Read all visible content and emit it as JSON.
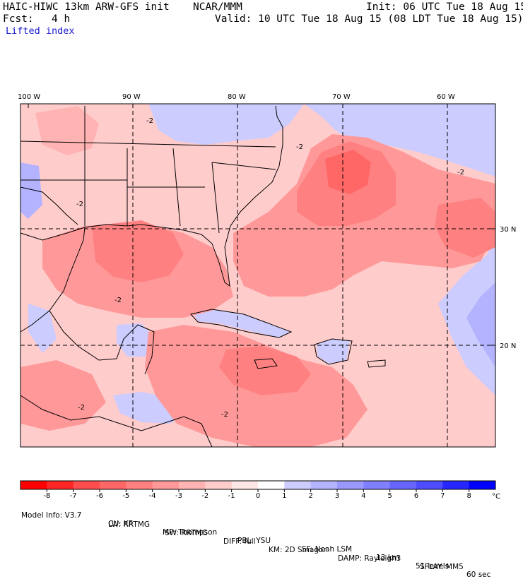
{
  "header": {
    "model": "HAIC-HIWC 13km ARW-GFS init",
    "org": "NCAR/MMM",
    "init": "Init: 06 UTC Tue 18 Aug 15",
    "fcst_label": "Fcst:",
    "fcst_value": "4 h",
    "valid": "Valid: 10 UTC Tue 18 Aug 15 (08 LDT Tue 18 Aug 15)",
    "field": "Lifted index"
  },
  "map": {
    "lon_labels": [
      "100 W",
      "90 W",
      "80 W",
      "70 W",
      "60 W"
    ],
    "lat_labels": [
      "30 N",
      "20 N"
    ],
    "contour_label": "-2"
  },
  "colorbar": {
    "unit": "°C",
    "ticks": [
      "-8",
      "-7",
      "-6",
      "-5",
      "-4",
      "-3",
      "-2",
      "-1",
      "0",
      "1",
      "2",
      "3",
      "4",
      "5",
      "6",
      "7",
      "8"
    ],
    "colors": [
      "#ff0000",
      "#ff2626",
      "#ff4d4d",
      "#ff6666",
      "#ff8080",
      "#ff9999",
      "#ffb3b3",
      "#ffcccc",
      "#ffe6e6",
      "#ffffff",
      "#ccccff",
      "#b3b3ff",
      "#9999ff",
      "#8080ff",
      "#6666ff",
      "#4d4dff",
      "#2626ff",
      "#0000ff"
    ]
  },
  "footer": {
    "line1": [
      "Model Info: V3.7",
      "CU: KF",
      "MP: Thompson",
      "PBL: YSU",
      "SF: Noah LSM",
      "13 km",
      "51 levels",
      "60 sec"
    ],
    "line2": [
      "LW: RRTMG",
      "SW: RRTMG",
      "DIFF: full",
      "KM: 2D Smagor",
      "DAMP: Rayleigh3",
      "SFLAY: MM5"
    ]
  }
}
